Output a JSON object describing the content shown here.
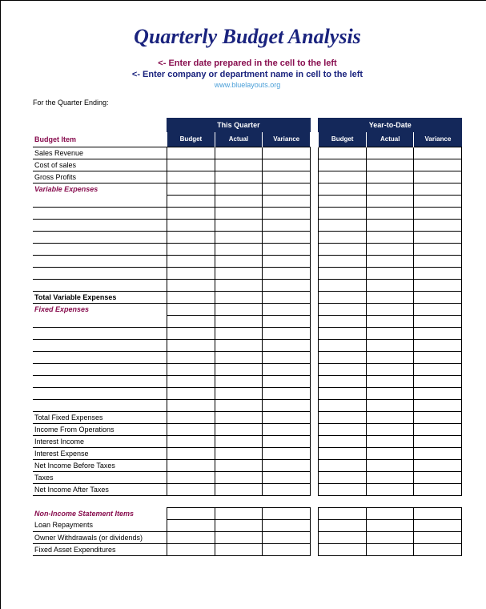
{
  "title": "Quarterly Budget Analysis",
  "instruction1": "<- Enter date prepared in the cell to the left",
  "instruction2": "<- Enter company or department name in cell to the left",
  "url": "www.bluelayouts.org",
  "quarter_ending_label": "For the Quarter Ending:",
  "headers": {
    "budget_item": "Budget Item",
    "this_quarter": "This Quarter",
    "year_to_date": "Year-to-Date",
    "budget": "Budget",
    "actual": "Actual",
    "variance": "Variance"
  },
  "rows": [
    {
      "label": "Sales Revenue",
      "type": "data"
    },
    {
      "label": "Cost of sales",
      "type": "data"
    },
    {
      "label": "Gross Profits",
      "type": "data"
    },
    {
      "label": "Variable Expenses",
      "type": "section"
    },
    {
      "label": "",
      "type": "data"
    },
    {
      "label": "",
      "type": "data"
    },
    {
      "label": "",
      "type": "data"
    },
    {
      "label": "",
      "type": "data"
    },
    {
      "label": "",
      "type": "data"
    },
    {
      "label": "",
      "type": "data"
    },
    {
      "label": "",
      "type": "data"
    },
    {
      "label": "",
      "type": "data"
    },
    {
      "label": "Total Variable Expenses",
      "type": "total"
    },
    {
      "label": "Fixed Expenses",
      "type": "section"
    },
    {
      "label": "",
      "type": "data"
    },
    {
      "label": "",
      "type": "data"
    },
    {
      "label": "",
      "type": "data"
    },
    {
      "label": "",
      "type": "data"
    },
    {
      "label": "",
      "type": "data"
    },
    {
      "label": "",
      "type": "data"
    },
    {
      "label": "",
      "type": "data"
    },
    {
      "label": "",
      "type": "data"
    },
    {
      "label": "Total Fixed Expenses",
      "type": "data"
    },
    {
      "label": "Income From Operations",
      "type": "data"
    },
    {
      "label": "Interest Income",
      "type": "data"
    },
    {
      "label": "Interest Expense",
      "type": "data"
    },
    {
      "label": "Net Income Before Taxes",
      "type": "data"
    },
    {
      "label": "Taxes",
      "type": "data"
    },
    {
      "label": "Net Income After Taxes",
      "type": "data"
    },
    {
      "label": "",
      "type": "blank"
    },
    {
      "label": "Non-Income Statement Items",
      "type": "section-bold"
    },
    {
      "label": "Loan Repayments",
      "type": "data"
    },
    {
      "label": "Owner Withdrawals (or dividends)",
      "type": "data"
    },
    {
      "label": "Fixed Asset Expenditures",
      "type": "data"
    }
  ],
  "colors": {
    "title": "#1a237e",
    "accent": "#880e4f",
    "header_bg": "#14285a",
    "url": "#4a9fd8"
  }
}
